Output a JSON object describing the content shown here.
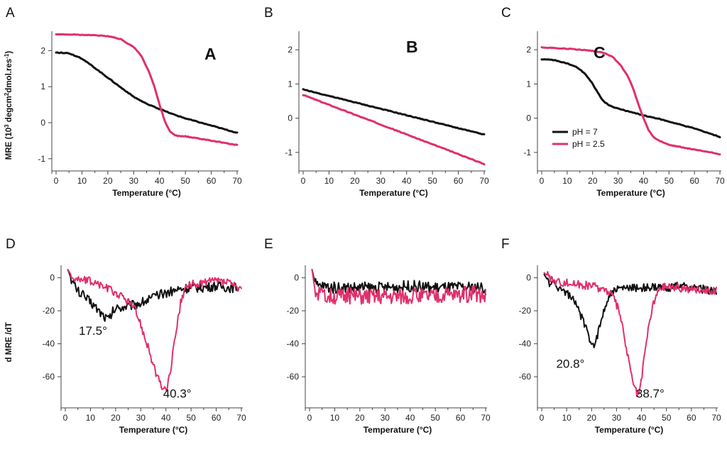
{
  "colors": {
    "ph7": "#111111",
    "ph25": "#e0306a"
  },
  "chart_data": [
    {
      "id": "A",
      "type": "line",
      "panel_label": "A",
      "inset_label": "A",
      "title": "",
      "xlabel": "Temperature (°C)",
      "ylabel": "MRE (10^3 degcm^2dmol.res^-1)",
      "ylabel_parts": {
        "main": "MRE (10",
        "sup1": "3",
        "mid": " degcm",
        "sup2": "2",
        "rest": "dmol.res",
        "sup3": "-1",
        "end": ")"
      },
      "xlim": [
        0,
        70
      ],
      "ylim": [
        -1.3,
        2.5
      ],
      "xticks": [
        0,
        10,
        20,
        30,
        40,
        50,
        60,
        70
      ],
      "yticks": [
        -1,
        0,
        1,
        2
      ],
      "series": [
        {
          "name": "pH = 7",
          "color_key": "ph7",
          "x": [
            0,
            5,
            10,
            15,
            20,
            25,
            30,
            35,
            40,
            45,
            50,
            55,
            60,
            65,
            70
          ],
          "y": [
            1.95,
            1.93,
            1.78,
            1.52,
            1.25,
            0.98,
            0.72,
            0.52,
            0.38,
            0.24,
            0.12,
            0.02,
            -0.08,
            -0.18,
            -0.28
          ]
        },
        {
          "name": "pH = 2.5",
          "color_key": "ph25",
          "x": [
            0,
            5,
            10,
            15,
            20,
            25,
            30,
            33,
            36,
            38,
            40,
            42,
            44,
            46,
            48,
            50,
            55,
            60,
            65,
            70
          ],
          "y": [
            2.45,
            2.45,
            2.44,
            2.43,
            2.4,
            2.32,
            2.1,
            1.85,
            1.4,
            1.0,
            0.5,
            0.05,
            -0.25,
            -0.35,
            -0.38,
            -0.38,
            -0.44,
            -0.5,
            -0.56,
            -0.62
          ]
        }
      ],
      "annotations": []
    },
    {
      "id": "B",
      "type": "line",
      "panel_label": "B",
      "inset_label": "B",
      "title": "",
      "xlabel": "Temperature (°C)",
      "ylabel": "",
      "xlim": [
        0,
        70
      ],
      "ylim": [
        -1.5,
        2.5
      ],
      "xticks": [
        0,
        10,
        20,
        30,
        40,
        50,
        60,
        70
      ],
      "yticks": [
        -1,
        0,
        1,
        2
      ],
      "series": [
        {
          "name": "pH = 7",
          "color_key": "ph7",
          "x": [
            0,
            70
          ],
          "y": [
            0.84,
            -0.48
          ]
        },
        {
          "name": "pH = 2.5",
          "color_key": "ph25",
          "x": [
            0,
            70
          ],
          "y": [
            0.68,
            -1.34
          ]
        }
      ],
      "annotations": []
    },
    {
      "id": "C",
      "type": "line",
      "panel_label": "C",
      "inset_label": "C",
      "title": "",
      "xlabel": "Temperature (°C)",
      "ylabel": "",
      "xlim": [
        0,
        70
      ],
      "ylim": [
        -1.5,
        2.5
      ],
      "xticks": [
        0,
        10,
        20,
        30,
        40,
        50,
        60,
        70
      ],
      "yticks": [
        -1,
        0,
        1,
        2
      ],
      "legend": {
        "entries": [
          "pH = 7",
          "pH = 2.5"
        ],
        "location": "center-left"
      },
      "series": [
        {
          "name": "pH = 7",
          "color_key": "ph7",
          "x": [
            0,
            5,
            10,
            14,
            17,
            20,
            22,
            24,
            26,
            28,
            30,
            35,
            40,
            45,
            50,
            55,
            60,
            65,
            70
          ],
          "y": [
            1.72,
            1.7,
            1.6,
            1.48,
            1.3,
            1.0,
            0.75,
            0.52,
            0.4,
            0.33,
            0.28,
            0.18,
            0.08,
            0.0,
            -0.1,
            -0.2,
            -0.3,
            -0.42,
            -0.55
          ]
        },
        {
          "name": "pH = 2.5",
          "color_key": "ph25",
          "x": [
            0,
            5,
            10,
            15,
            20,
            25,
            28,
            31,
            34,
            36,
            38,
            40,
            42,
            44,
            46,
            48,
            50,
            55,
            60,
            65,
            70
          ],
          "y": [
            2.07,
            2.05,
            2.03,
            2.0,
            1.97,
            1.9,
            1.78,
            1.55,
            1.2,
            0.85,
            0.4,
            0.0,
            -0.35,
            -0.55,
            -0.65,
            -0.72,
            -0.78,
            -0.85,
            -0.92,
            -0.98,
            -1.05
          ]
        }
      ],
      "annotations": []
    },
    {
      "id": "D",
      "type": "line",
      "panel_label": "D",
      "inset_label": "",
      "title": "",
      "xlabel": "Temperature (°C)",
      "ylabel": "d MRE /dT",
      "xlim": [
        0,
        70
      ],
      "ylim": [
        -78,
        5
      ],
      "xticks": [
        0,
        10,
        20,
        30,
        40,
        50,
        60,
        70
      ],
      "yticks": [
        0,
        -20,
        -40,
        -60
      ],
      "series": [
        {
          "name": "pH = 7",
          "color_key": "ph7",
          "x": [
            1,
            3,
            5,
            8,
            11,
            14,
            16,
            17.5,
            19,
            21,
            25,
            30,
            35,
            40,
            45,
            50,
            55,
            60,
            65,
            69
          ],
          "y": [
            5,
            -3,
            -8,
            -12,
            -16,
            -21,
            -24,
            -25,
            -20,
            -18,
            -17,
            -15,
            -12,
            -9,
            -7,
            -6,
            -6,
            -5,
            -6,
            -6
          ],
          "noise": 3
        },
        {
          "name": "pH = 2.5",
          "color_key": "ph25",
          "x": [
            1,
            3,
            5,
            10,
            15,
            20,
            25,
            28,
            30,
            32,
            34,
            36,
            38,
            40,
            42,
            44,
            46,
            48,
            50,
            55,
            60,
            65,
            70
          ],
          "y": [
            5,
            0,
            -1,
            -2,
            -5,
            -9,
            -14,
            -20,
            -28,
            -38,
            -48,
            -58,
            -65,
            -69,
            -55,
            -32,
            -14,
            -6,
            -4,
            -3,
            -2,
            -3,
            -8
          ],
          "noise": 2.5
        }
      ],
      "annotations": [
        {
          "text": "17.5°",
          "x": 11,
          "y": -32
        },
        {
          "text": "40.3°",
          "x": 44.5,
          "y": -70
        }
      ]
    },
    {
      "id": "E",
      "type": "line",
      "panel_label": "E",
      "inset_label": "",
      "title": "",
      "xlabel": "Temperature (°C)",
      "ylabel": "",
      "xlim": [
        0,
        70
      ],
      "ylim": [
        -78,
        5
      ],
      "xticks": [
        0,
        10,
        20,
        30,
        40,
        50,
        60,
        70
      ],
      "yticks": [
        0,
        -20,
        -40,
        -60
      ],
      "series": [
        {
          "name": "pH = 7",
          "color_key": "ph7",
          "x": [
            1,
            2,
            3,
            5,
            10,
            20,
            30,
            40,
            50,
            60,
            68,
            70
          ],
          "y": [
            5,
            -2,
            -5,
            -5,
            -6,
            -6,
            -6,
            -5,
            -6,
            -6,
            -6,
            -7
          ],
          "noise": 3.5
        },
        {
          "name": "pH = 2.5",
          "color_key": "ph25",
          "x": [
            1,
            2,
            3,
            5,
            10,
            20,
            30,
            40,
            50,
            60,
            68,
            70
          ],
          "y": [
            5,
            -6,
            -10,
            -11,
            -11,
            -11,
            -11,
            -11,
            -11,
            -10,
            -10,
            -11
          ],
          "noise": 5
        }
      ],
      "annotations": []
    },
    {
      "id": "F",
      "type": "line",
      "panel_label": "F",
      "inset_label": "",
      "title": "",
      "xlabel": "Temperature (°C)",
      "ylabel": "",
      "xlim": [
        0,
        70
      ],
      "ylim": [
        -78,
        5
      ],
      "xticks": [
        0,
        10,
        20,
        30,
        40,
        50,
        60,
        70
      ],
      "yticks": [
        0,
        -20,
        -40,
        -60
      ],
      "series": [
        {
          "name": "pH = 7",
          "color_key": "ph7",
          "x": [
            1,
            3,
            6,
            9,
            12,
            15,
            17,
            19,
            20.8,
            22,
            24,
            26,
            28,
            30,
            35,
            40,
            45,
            50,
            55,
            60,
            65,
            70
          ],
          "y": [
            2,
            -3,
            -5,
            -8,
            -12,
            -20,
            -28,
            -36,
            -41,
            -37,
            -25,
            -14,
            -9,
            -7,
            -6,
            -6,
            -6,
            -6,
            -5,
            -6,
            -7,
            -8
          ],
          "noise": 2.5
        },
        {
          "name": "pH = 2.5",
          "color_key": "ph25",
          "x": [
            1,
            5,
            10,
            15,
            20,
            25,
            28,
            31,
            33,
            35,
            37,
            38.7,
            40,
            42,
            44,
            46,
            48,
            50,
            55,
            60,
            65,
            70
          ],
          "y": [
            3,
            -2,
            -3,
            -4,
            -5,
            -7,
            -10,
            -20,
            -35,
            -52,
            -66,
            -72,
            -62,
            -38,
            -20,
            -10,
            -6,
            -5,
            -6,
            -7,
            -7,
            -8
          ],
          "noise": 2.5
        }
      ],
      "annotations": [
        {
          "text": "20.8°",
          "x": 11.5,
          "y": -52
        },
        {
          "text": "38.7°",
          "x": 43.5,
          "y": -70
        }
      ]
    }
  ]
}
